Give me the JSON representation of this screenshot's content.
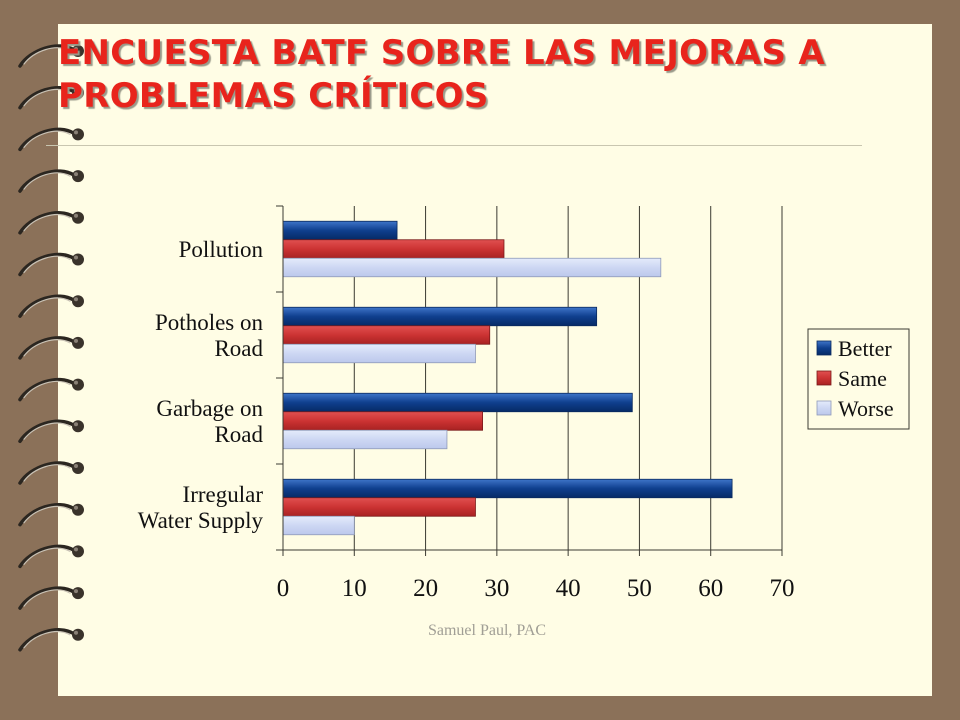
{
  "slide": {
    "title": "ENCUESTA BATF SOBRE LAS MEJORAS A PROBLEMAS CRÍTICOS",
    "footer": "Samuel Paul, PAC",
    "title_color": "#e8241c",
    "background_color": "#fffde5",
    "frame_color": "#8b7159"
  },
  "chart_data": {
    "type": "bar",
    "orientation": "horizontal",
    "title": "",
    "xlabel": "",
    "ylabel": "",
    "categories": [
      [
        "Pollution"
      ],
      [
        "Potholes on",
        "Road"
      ],
      [
        "Garbage on",
        "Road"
      ],
      [
        "Irregular",
        "Water Supply"
      ]
    ],
    "series": [
      {
        "name": "Better",
        "values": [
          16,
          44,
          49,
          63
        ],
        "color": "#0d3f8f"
      },
      {
        "name": "Same",
        "values": [
          31,
          29,
          28,
          27
        ],
        "color": "#cc3333"
      },
      {
        "name": "Worse",
        "values": [
          53,
          27,
          23,
          10
        ],
        "color": "#cfd9f5"
      }
    ],
    "xlim": [
      0,
      70
    ],
    "xticks": [
      0,
      10,
      20,
      30,
      40,
      50,
      60,
      70
    ],
    "grid": "vertical",
    "legend": "right"
  }
}
